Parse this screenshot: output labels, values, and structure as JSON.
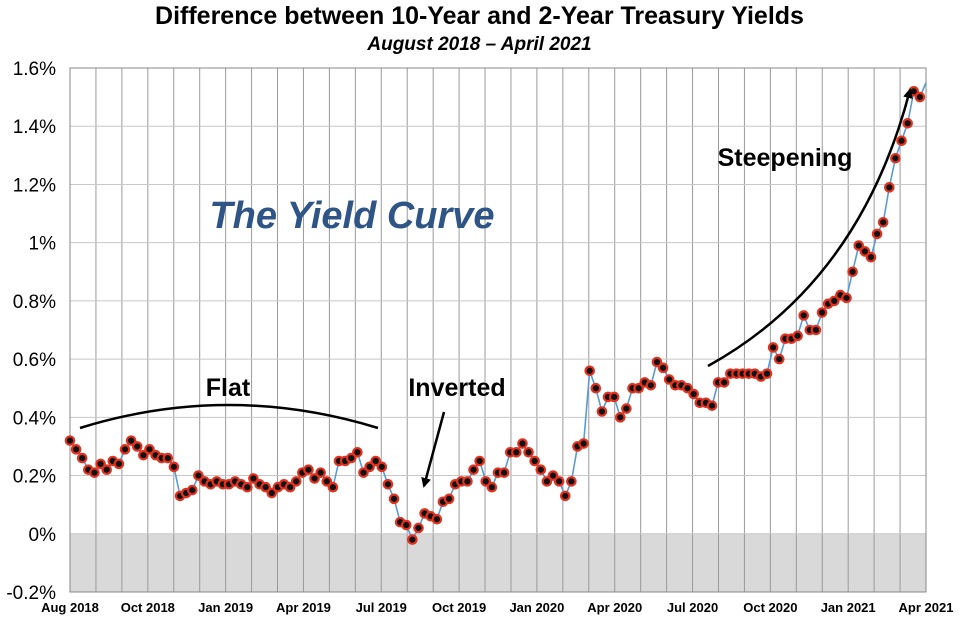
{
  "chart_data": {
    "type": "line",
    "title": "Difference between 10-Year and 2-Year Treasury Yields",
    "subtitle": "August 2018 – April 2021",
    "xlabel": "",
    "ylabel": "",
    "ylim": [
      -0.2,
      1.6
    ],
    "yticks": [
      -0.2,
      0,
      0.2,
      0.4,
      0.6,
      0.8,
      1.0,
      1.2,
      1.4,
      1.6
    ],
    "ytick_labels": [
      "-0.2%",
      "0%",
      "0.2%",
      "0.4%",
      "0.6%",
      "0.8%",
      "1%",
      "1.2%",
      "1.4%",
      "1.6%"
    ],
    "xtick_labels": [
      "Aug 2018",
      "Oct 2018",
      "Jan 2019",
      "Apr 2019",
      "Jul 2019",
      "Oct 2019",
      "Jan 2020",
      "Apr 2020",
      "Jul 2020",
      "Oct 2020",
      "Jan 2021",
      "Apr 2021"
    ],
    "grid": true,
    "negative_region_color": "#d9d9d9",
    "line_color": "#5b9bd5",
    "marker_color": "#e0321e",
    "series": [
      {
        "values": [
          0.32,
          0.29,
          0.26,
          0.22,
          0.21,
          0.24,
          0.22,
          0.25,
          0.24,
          0.29,
          0.32,
          0.3,
          0.27,
          0.29,
          0.27,
          0.26,
          0.26,
          0.23,
          0.13,
          0.14,
          0.15,
          0.2,
          0.18,
          0.17,
          0.18,
          0.17,
          0.17,
          0.18,
          0.17,
          0.16,
          0.19,
          0.17,
          0.16,
          0.14,
          0.16,
          0.17,
          0.16,
          0.18,
          0.21,
          0.22,
          0.19,
          0.21,
          0.18,
          0.16,
          0.25,
          0.25,
          0.26,
          0.28,
          0.21,
          0.23,
          0.25,
          0.23,
          0.17,
          0.12,
          0.04,
          0.03,
          -0.02,
          0.02,
          0.07,
          0.06,
          0.05,
          0.11,
          0.12,
          0.17,
          0.18,
          0.18,
          0.22,
          0.25,
          0.18,
          0.16,
          0.21,
          0.21,
          0.28,
          0.28,
          0.31,
          0.28,
          0.25,
          0.22,
          0.18,
          0.2,
          0.18,
          0.13,
          0.18,
          0.3,
          0.31,
          0.56,
          0.5,
          0.42,
          0.47,
          0.47,
          0.4,
          0.43,
          0.5,
          0.5,
          0.52,
          0.51,
          0.59,
          0.57,
          0.53,
          0.51,
          0.51,
          0.5,
          0.48,
          0.45,
          0.45,
          0.44,
          0.52,
          0.52,
          0.55,
          0.55,
          0.55,
          0.55,
          0.55,
          0.54,
          0.55,
          0.64,
          0.6,
          0.67,
          0.67,
          0.68,
          0.75,
          0.7,
          0.7,
          0.76,
          0.79,
          0.8,
          0.82,
          0.81,
          0.9,
          0.99,
          0.97,
          0.95,
          1.03,
          1.07,
          1.19,
          1.29,
          1.35,
          1.41,
          1.52,
          1.5,
          1.55
        ]
      }
    ],
    "annotations": [
      {
        "text": "Flat"
      },
      {
        "text": "Inverted"
      },
      {
        "text": "Steepening"
      }
    ],
    "banner": "The Yield Curve"
  }
}
